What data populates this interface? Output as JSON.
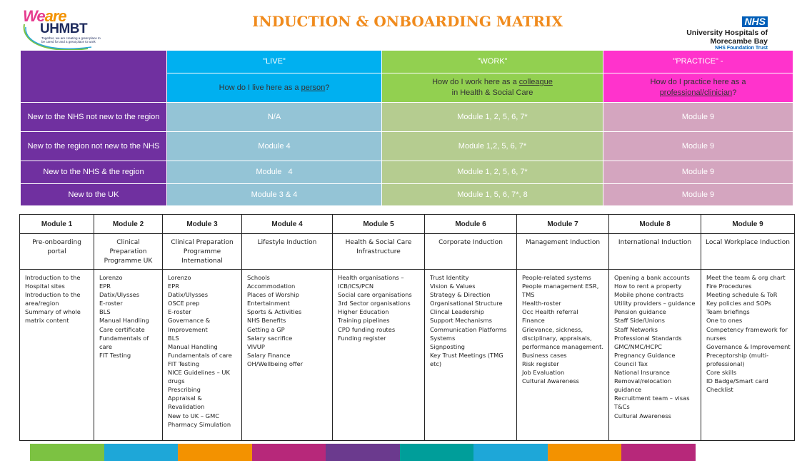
{
  "header": {
    "logo_we": "We",
    "logo_are": "are",
    "logo_name": "UHMBT",
    "logo_tagline": "Together, we are creating a great place to be cared for and a great place to work",
    "title": "INDUCTION & ONBOARDING MATRIX",
    "nhs_badge": "NHS",
    "trust_line1": "University Hospitals of",
    "trust_line2": "Morecambe Bay",
    "trust_line3": "NHS Foundation Trust"
  },
  "matrix": {
    "columns": [
      {
        "heading": "\"LIVE\"",
        "question_pre": "How do I live here as a ",
        "question_em": "person",
        "question_post": "?",
        "color": "#00b0f0"
      },
      {
        "heading": "\"WORK\"",
        "question_pre": "How do I work here as a ",
        "question_em": "colleague",
        "question_post": "in Health & Social Care",
        "color": "#92d050"
      },
      {
        "heading": "\"PRACTICE\" -",
        "question_pre": "How do I practice here as a",
        "question_em": "professional/clinician",
        "question_post": "?",
        "color": "#ff33cc"
      }
    ],
    "rows": [
      {
        "label": "New to the NHS not new to the region",
        "live": "N/A",
        "work": "Module 1, 2, 5, 6, 7*",
        "practice": "Module 9"
      },
      {
        "label": "New to the region not new to the NHS",
        "live": "Module 4",
        "work": "Module 1,2, 5, 6, 7*",
        "practice": "Module 9"
      },
      {
        "label": "New to the NHS & the region",
        "live": "Module   4",
        "work": "Module 1, 2, 5, 6, 7*",
        "practice": "Module 9"
      },
      {
        "label": "New to the UK",
        "live": "Module 3 & 4",
        "work": "Module 1, 5, 6, 7*, 8",
        "practice": "Module 9"
      }
    ]
  },
  "modules": [
    {
      "title": "Module 1",
      "subtitle": "Pre-onboarding portal",
      "items": [
        "Introduction to the Hospital sites",
        "Introduction to the area/region",
        "Summary of whole matrix content"
      ]
    },
    {
      "title": "Module 2",
      "subtitle": "Clinical Preparation Programme UK",
      "items": [
        "Lorenzo",
        "EPR",
        "Datix/Ulysses",
        "E-roster",
        "BLS",
        "Manual Handling",
        "Care certificate",
        "Fundamentals of care",
        "FIT Testing"
      ]
    },
    {
      "title": "Module 3",
      "subtitle": "Clinical Preparation Programme International",
      "items": [
        "Lorenzo",
        "EPR",
        "Datix/Ulysses",
        "OSCE prep",
        "E-roster",
        "Governance & Improvement",
        "BLS",
        "Manual Handling",
        "Fundamentals of care",
        "FIT Testing",
        "NICE Guidelines – UK drugs",
        "Prescribing",
        "Appraisal & Revalidation",
        "New to UK – GMC",
        "Pharmacy Simulation"
      ]
    },
    {
      "title": "Module 4",
      "subtitle": "Lifestyle Induction",
      "items": [
        "Schools",
        "Accommodation",
        "Places of Worship",
        "Entertainment",
        "Sports & Activities",
        "NHS Benefits",
        "Getting a GP",
        "Salary sacrifice",
        "VIVUP",
        "Salary Finance",
        "OH/Wellbeing offer"
      ]
    },
    {
      "title": "Module 5",
      "subtitle": "Health & Social Care Infrastructure",
      "items": [
        "Health organisations –",
        "ICB/ICS/PCN",
        "Social care organisations",
        "3rd Sector organisations",
        "Higher Education",
        "Training pipelines",
        "CPD funding routes",
        "Funding register"
      ]
    },
    {
      "title": "Module 6",
      "subtitle": "Corporate Induction",
      "items": [
        "Trust Identity",
        "Vision & Values",
        "Strategy & Direction",
        "Organisational Structure",
        "Clincal Leadership",
        "Support Mechanisms",
        "Communication Platforms Systems",
        "Signposting",
        "Key Trust Meetings (TMG etc)"
      ]
    },
    {
      "title": "Module 7",
      "subtitle": "Management Induction",
      "items": [
        "People-related systems",
        "People management ESR, TMS",
        "Health-roster",
        "Occ Health referral",
        "Finance",
        "Grievance, sickness, disciplinary, appraisals, performance management.",
        "Business cases",
        "Risk register",
        "Job Evaluation",
        "Cultural Awareness"
      ]
    },
    {
      "title": "Module 8",
      "subtitle": "International Induction",
      "items": [
        "Opening a bank accounts",
        "How to rent a property",
        "Mobile phone contracts",
        "Utility providers – guidance",
        "Pension guidance",
        "Staff Side/Unions",
        "Staff Networks",
        "Professional Standards",
        "GMC/NMC/HCPC",
        "Pregnancy Guidance",
        "Council Tax",
        "National Insurance",
        "Removal/relocation guidance",
        "Recruitment team – visas T&Cs",
        "Cultural Awareness"
      ]
    },
    {
      "title": "Module 9",
      "subtitle": "Local Workplace Induction",
      "items": [
        "Meet the team & org chart",
        "Fire Procedures",
        "Meeting schedule & ToR",
        "Key policies and SOPs",
        "Team briefings",
        "One to ones",
        "Competency framework for nurses",
        "Governance & Improvement",
        "Preceptorship (multi-professional)",
        "Core skills",
        "ID Badge/Smart card",
        "Checklist"
      ]
    }
  ],
  "footer_strip_colors": [
    "#7cc242",
    "#1ea7d8",
    "#f39200",
    "#b7287a",
    "#6b3a8e",
    "#009e9a",
    "#1ea7d8",
    "#f39200",
    "#b7287a"
  ]
}
